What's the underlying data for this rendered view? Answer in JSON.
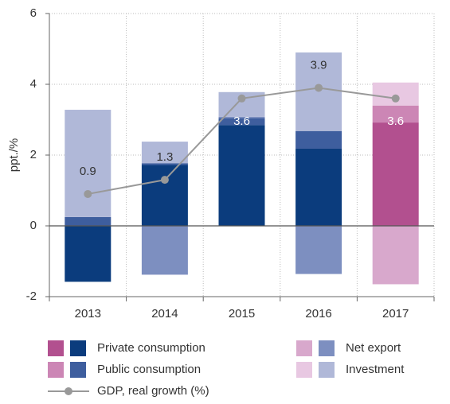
{
  "chart_data": {
    "type": "bar",
    "stacked": true,
    "y_label": "ppt./%",
    "categories": [
      "2013",
      "2014",
      "2015",
      "2016",
      "2017"
    ],
    "ylim": [
      -2,
      6
    ],
    "yticks": [
      -2,
      0,
      2,
      4,
      6
    ],
    "grid": true,
    "series": [
      {
        "name": "Private consumption",
        "colors": [
          "#0b3c7d",
          "#0b3c7d",
          "#0b3c7d",
          "#0b3c7d",
          "#b2508f"
        ],
        "values": [
          -1.58,
          1.72,
          2.85,
          2.18,
          2.92
        ]
      },
      {
        "name": "Public consumption",
        "colors": [
          "#3e5e9e",
          "#3e5e9e",
          "#3e5e9e",
          "#3e5e9e",
          "#cc86b5"
        ],
        "values": [
          0.25,
          0.05,
          0.2,
          0.5,
          0.48
        ]
      },
      {
        "name": "Net export",
        "colors": [
          "#7d8fc0",
          "#7d8fc0",
          "#7d8fc0",
          "#7d8fc0",
          "#d8a8cc"
        ],
        "values": [
          0,
          -1.38,
          0.03,
          -1.36,
          -1.65
        ]
      },
      {
        "name": "Investment",
        "colors": [
          "#b0b8d8",
          "#b0b8d8",
          "#b0b8d8",
          "#b0b8d8",
          "#e8c8e2"
        ],
        "values": [
          3.03,
          0.61,
          0.7,
          2.22,
          0.65
        ]
      }
    ],
    "line": {
      "name": "GDP, real growth (%)",
      "type": "line",
      "color": "#999999",
      "values": [
        0.9,
        1.3,
        3.6,
        3.9,
        3.6
      ]
    }
  }
}
